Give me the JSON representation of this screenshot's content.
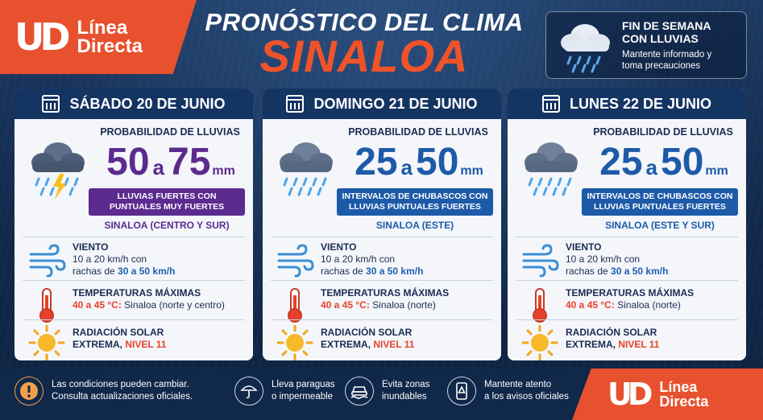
{
  "header": {
    "logo_mark": "UD",
    "logo_line1": "Línea",
    "logo_line2": "Directa",
    "title_line1": "PRONÓSTICO DEL CLIMA",
    "title_line2": "SINALOA"
  },
  "weekend_box": {
    "title_line1": "FIN DE SEMANA",
    "title_line2": "CON LLUVIAS",
    "text_line1": "Mantente informado y",
    "text_line2": "toma precauciones",
    "icon": "rain-cloud-icon"
  },
  "days": [
    {
      "date": "SÁBADO 20 DE JUNIO",
      "prob_label": "PROBABILIDAD DE LLUVIAS",
      "amount_from": "50",
      "amount_sep": "a",
      "amount_to": "75",
      "amount_unit": "mm",
      "amount_color": "#5b2b8f",
      "desc_line1": "LLUVIAS FUERTES CON",
      "desc_line2": "PUNTUALES MUY FUERTES",
      "desc_color": "#5b2b8f",
      "region": "SINALOA (CENTRO Y SUR)",
      "region_color": "#5b2b8f",
      "wind_title": "VIENTO",
      "wind_line1": "10 a 20 km/h con",
      "wind_prefix": "rachas de ",
      "wind_gusts": "30 a 50 km/h",
      "temp_title": "TEMPERATURAS MÁXIMAS",
      "temp_range": "40 a 45 °C:",
      "temp_area": " Sinaloa (norte y centro)",
      "solar_title": "RADIACIÓN SOLAR",
      "solar_level_prefix": "EXTREMA, ",
      "solar_level": "NIVEL 11",
      "icon": "thunderstorm-icon"
    },
    {
      "date": "DOMINGO 21 DE JUNIO",
      "prob_label": "PROBABILIDAD DE LLUVIAS",
      "amount_from": "25",
      "amount_sep": "a",
      "amount_to": "50",
      "amount_unit": "mm",
      "amount_color": "#1d5aa8",
      "desc_line1": "INTERVALOS DE CHUBASCOS CON",
      "desc_line2": "LLUVIAS PUNTUALES FUERTES",
      "desc_color": "#1d5aa8",
      "region": "SINALOA (ESTE)",
      "region_color": "#1d5aa8",
      "wind_title": "VIENTO",
      "wind_line1": "10 a 20 km/h con",
      "wind_prefix": "rachas de ",
      "wind_gusts": "30 a 50 km/h",
      "temp_title": "TEMPERATURAS MÁXIMAS",
      "temp_range": "40 a 45 °C:",
      "temp_area": " Sinaloa (norte)",
      "solar_title": "RADIACIÓN SOLAR",
      "solar_level_prefix": "EXTREMA, ",
      "solar_level": "NIVEL 11",
      "icon": "rain-cloud-icon"
    },
    {
      "date": "LUNES 22 DE JUNIO",
      "prob_label": "PROBABILIDAD DE LLUVIAS",
      "amount_from": "25",
      "amount_sep": "a",
      "amount_to": "50",
      "amount_unit": "mm",
      "amount_color": "#1d5aa8",
      "desc_line1": "INTERVALOS DE CHUBASCOS CON",
      "desc_line2": "LLUVIAS PUNTUALES FUERTES",
      "desc_color": "#1d5aa8",
      "region": "SINALOA (ESTE Y SUR)",
      "region_color": "#1d5aa8",
      "wind_title": "VIENTO",
      "wind_line1": "10 a 20 km/h con",
      "wind_prefix": "rachas de ",
      "wind_gusts": "30 a 50 km/h",
      "temp_title": "TEMPERATURAS MÁXIMAS",
      "temp_range": "40 a 45 °C:",
      "temp_area": " Sinaloa (norte)",
      "solar_title": "RADIACIÓN SOLAR",
      "solar_level_prefix": "EXTREMA, ",
      "solar_level": "NIVEL 11",
      "icon": "rain-cloud-icon"
    }
  ],
  "footer": {
    "warning_line1": "Las condiciones pueden cambiar.",
    "warning_line2": "Consulta actualizaciones oficiales.",
    "tip1_line1": "Lleva paraguas",
    "tip1_line2": "o impermeable",
    "tip2_line1": "Evita zonas",
    "tip2_line2": "inundables",
    "tip3_line1": "Mantente atento",
    "tip3_line2": "a los avisos oficiales",
    "logo_mark": "UD",
    "logo_line1": "Línea",
    "logo_line2": "Directa"
  },
  "colors": {
    "brand_orange": "#e8512e",
    "navy": "#143462",
    "purple": "#5b2b8f",
    "blue": "#1d5aa8",
    "warning_red": "#e8412b"
  }
}
